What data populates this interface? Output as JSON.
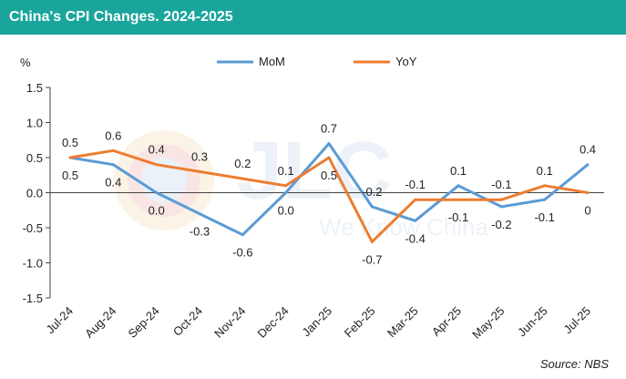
{
  "header": {
    "title": "China's CPI Changes. 2024-2025",
    "accent": "#1aa59c"
  },
  "chart_data": {
    "type": "line",
    "title": "China's CPI Changes. 2024-2025",
    "ylabel": "%",
    "xlabel": "",
    "categories": [
      "Jul-24",
      "Aug-24",
      "Sep-24",
      "Oct-24",
      "Nov-24",
      "Dec-24",
      "Jan-25",
      "Feb-25",
      "Mar-25",
      "Apr-25",
      "May-25",
      "Jun-25",
      "Jul-25"
    ],
    "series": [
      {
        "name": "MoM",
        "color": "#5b9bd5",
        "values": [
          0.5,
          0.4,
          0.0,
          -0.3,
          -0.6,
          0.0,
          0.7,
          -0.2,
          -0.4,
          0.1,
          -0.2,
          -0.1,
          0.4
        ],
        "labels": [
          "0.5",
          "0.4",
          "0.0",
          "-0.3",
          "-0.6",
          "0.0",
          "0.7",
          "-0.2",
          "-0.4",
          "0.1",
          "-0.2",
          "-0.1",
          "0.4"
        ]
      },
      {
        "name": "YoY",
        "color": "#ed7d31",
        "values": [
          0.5,
          0.6,
          0.4,
          0.3,
          0.2,
          0.1,
          0.5,
          -0.7,
          -0.1,
          -0.1,
          -0.1,
          0.1,
          0.0
        ],
        "labels": [
          "0.5",
          "0.6",
          "0.4",
          "0.3",
          "0.2",
          "0.1",
          "0.5",
          "-0.7",
          "-0.1",
          "-0.1",
          "-0.1",
          "0.1",
          "0"
        ]
      }
    ],
    "ylim": [
      -1.5,
      1.5
    ],
    "yticks": [
      "1.5",
      "1.0",
      "0.5",
      "0.0",
      "-0.5",
      "-1.0",
      "-1.5"
    ],
    "grid": false,
    "legend": "top",
    "source": "Source: NBS"
  },
  "watermark": {
    "text": "We Know China"
  }
}
